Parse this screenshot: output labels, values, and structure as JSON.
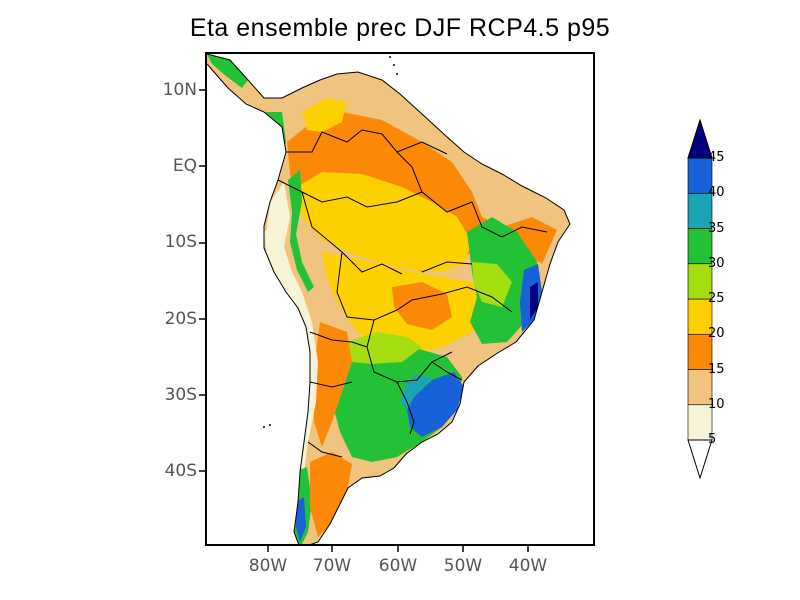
{
  "title": "Eta ensemble prec DJF RCP4.5 p95",
  "lat_labels": [
    "10N",
    "EQ",
    "10S",
    "20S",
    "30S",
    "40S"
  ],
  "lon_labels": [
    "80W",
    "70W",
    "60W",
    "50W",
    "40W"
  ],
  "legend": {
    "levels": [
      "5",
      "10",
      "15",
      "20",
      "25",
      "30",
      "35",
      "40",
      "45"
    ],
    "colors": [
      "#f7f3d6",
      "#f0c47e",
      "#fb8806",
      "#fdd000",
      "#a4dd10",
      "#22c136",
      "#1aa4b4",
      "#1861d8",
      "#000080"
    ],
    "below_color": "#ffffff",
    "above_color": "#000080"
  },
  "colors": {
    "ocean": "#ffffff",
    "border": "#000000"
  }
}
